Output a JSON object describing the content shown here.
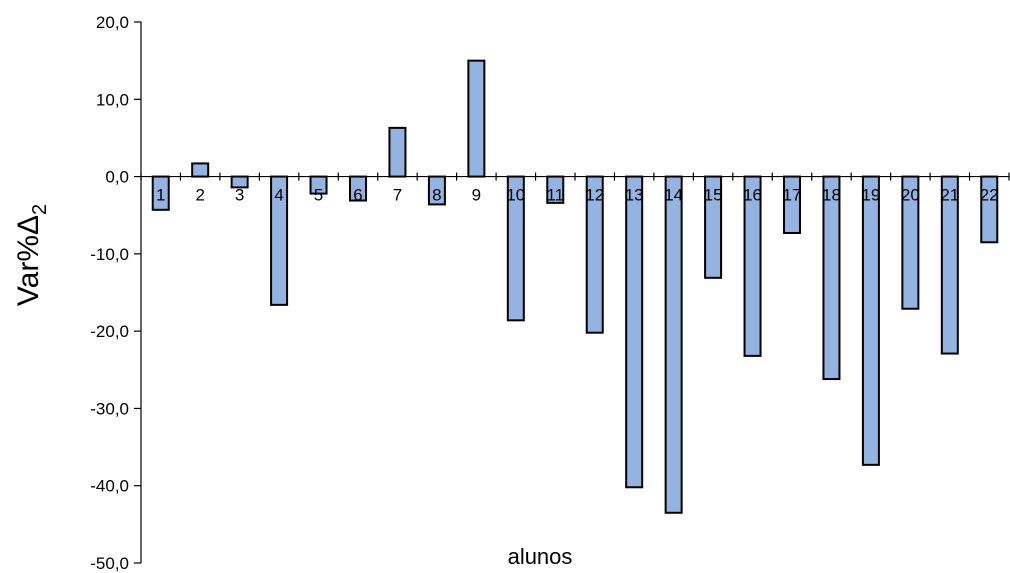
{
  "chart_data": {
    "type": "bar",
    "categories": [
      "1",
      "2",
      "3",
      "4",
      "5",
      "6",
      "7",
      "8",
      "9",
      "10",
      "11",
      "12",
      "13",
      "14",
      "15",
      "16",
      "17",
      "18",
      "19",
      "20",
      "21",
      "22"
    ],
    "values": [
      -4.3,
      1.7,
      -1.4,
      -16.6,
      -2.2,
      -3.1,
      6.3,
      -3.6,
      15.0,
      -18.6,
      -3.4,
      -20.2,
      -40.2,
      -43.5,
      -13.1,
      -23.2,
      -7.3,
      -26.2,
      -37.3,
      -17.1,
      -22.9,
      -8.5
    ],
    "ylabel": "Var%Δ",
    "ylabel_subscript": "2",
    "xlabel": "alunos",
    "ylim": [
      -50,
      20
    ],
    "yticks": [
      20,
      10,
      0,
      -10,
      -20,
      -30,
      -40,
      -50
    ],
    "ytick_labels": [
      "20,0",
      "10,0",
      "0,0",
      "-10,0",
      "-20,0",
      "-30,0",
      "-40,0",
      "-50,0"
    ],
    "grid": false,
    "legend": "none",
    "bar_color": "#95b3e0"
  }
}
